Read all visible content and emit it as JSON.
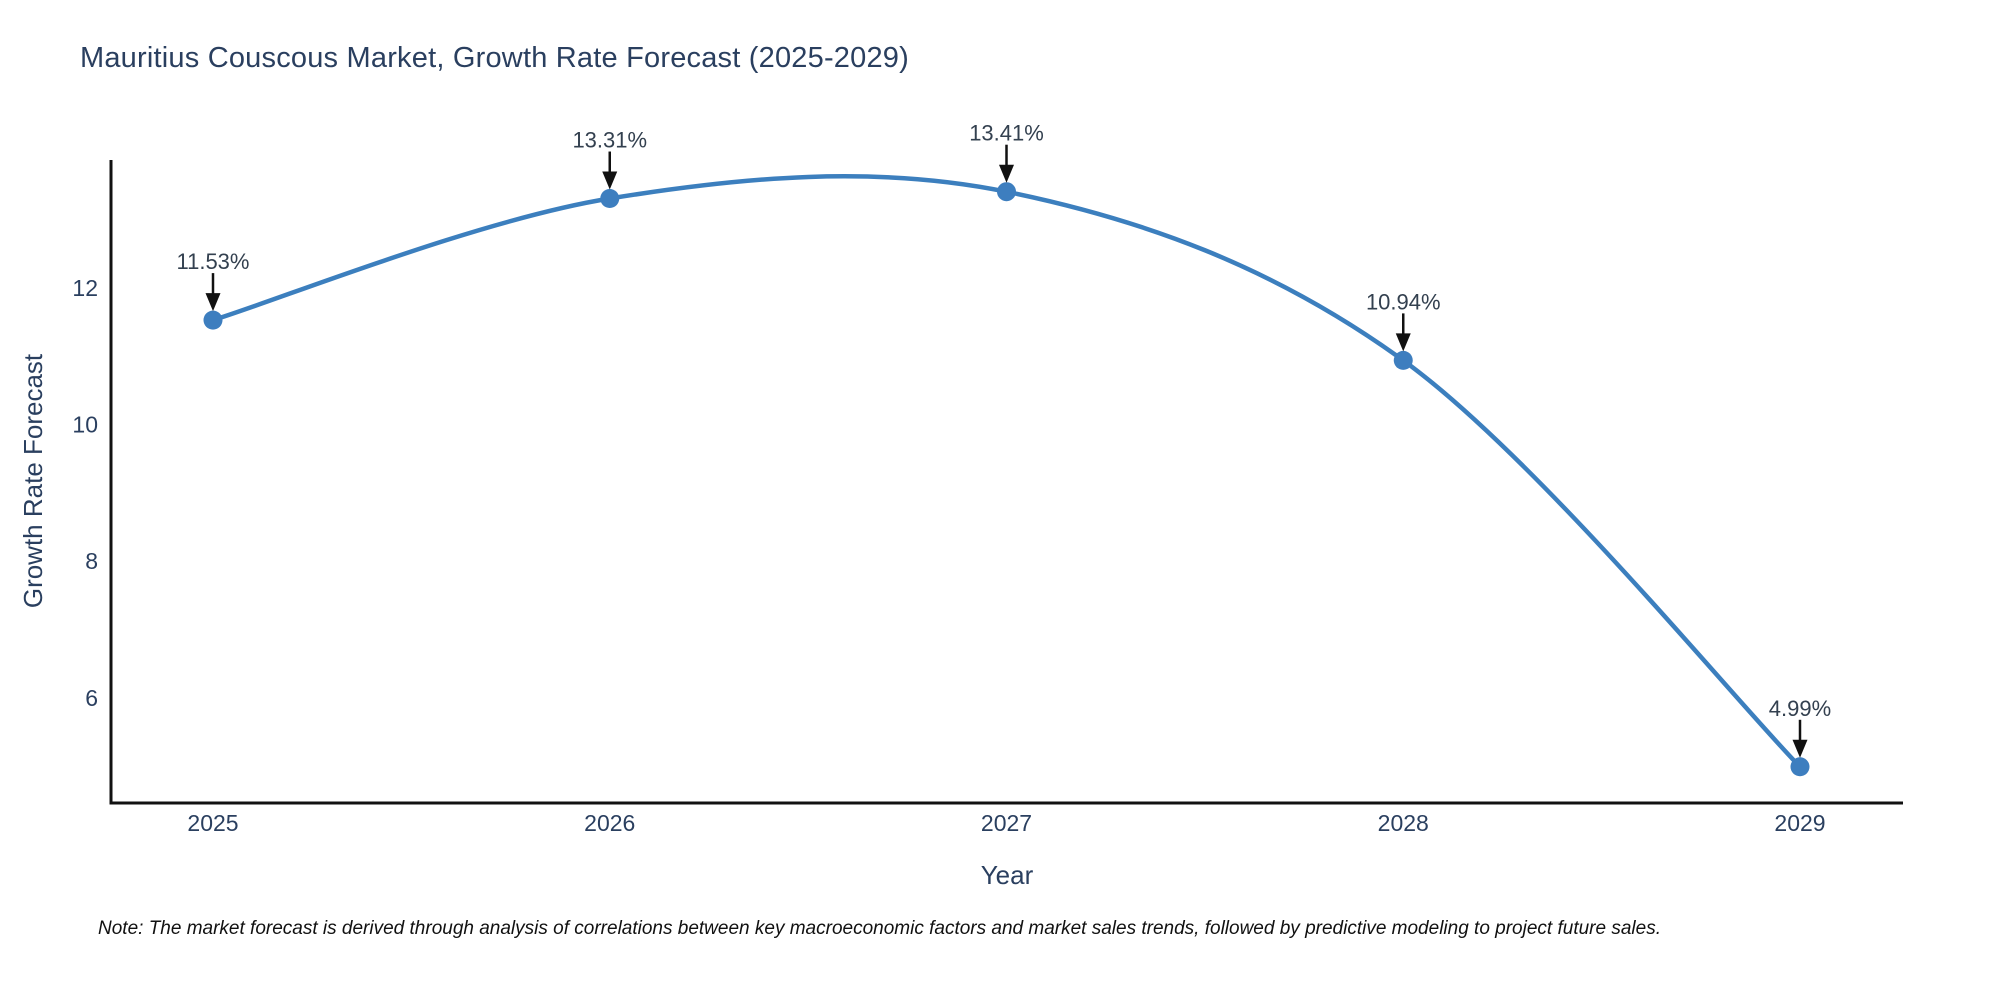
{
  "title": "Mauritius Couscous Market, Growth Rate Forecast (2025-2029)",
  "note": "Note: The market forecast is derived through analysis of correlations between key macroeconomic factors and market sales trends, followed by predictive modeling to project future sales.",
  "chart_data": {
    "type": "line",
    "title": "Mauritius Couscous Market, Growth Rate Forecast (2025-2029)",
    "xlabel": "Year",
    "ylabel": "Growth Rate Forecast",
    "categories": [
      "2025",
      "2026",
      "2027",
      "2028",
      "2029"
    ],
    "series": [
      {
        "name": "Growth Rate Forecast",
        "values": [
          11.53,
          13.31,
          13.41,
          10.94,
          4.99
        ]
      }
    ],
    "point_labels": [
      "11.53%",
      "13.31%",
      "13.41%",
      "10.94%",
      "4.99%"
    ],
    "y_ticks": [
      12,
      10,
      8,
      6
    ],
    "ylim": [
      4.45,
      14.1
    ],
    "grid": false,
    "legend": "none",
    "line_shape": "spline",
    "markers": true,
    "annotation_style": "value-label-with-down-arrow",
    "colors": {
      "line": "#3c7fbe",
      "marker": "#3d7ebf",
      "axis": "#111111",
      "text": "#2a3f5f",
      "annotation_text": "#33404f",
      "arrow": "#111111"
    }
  }
}
